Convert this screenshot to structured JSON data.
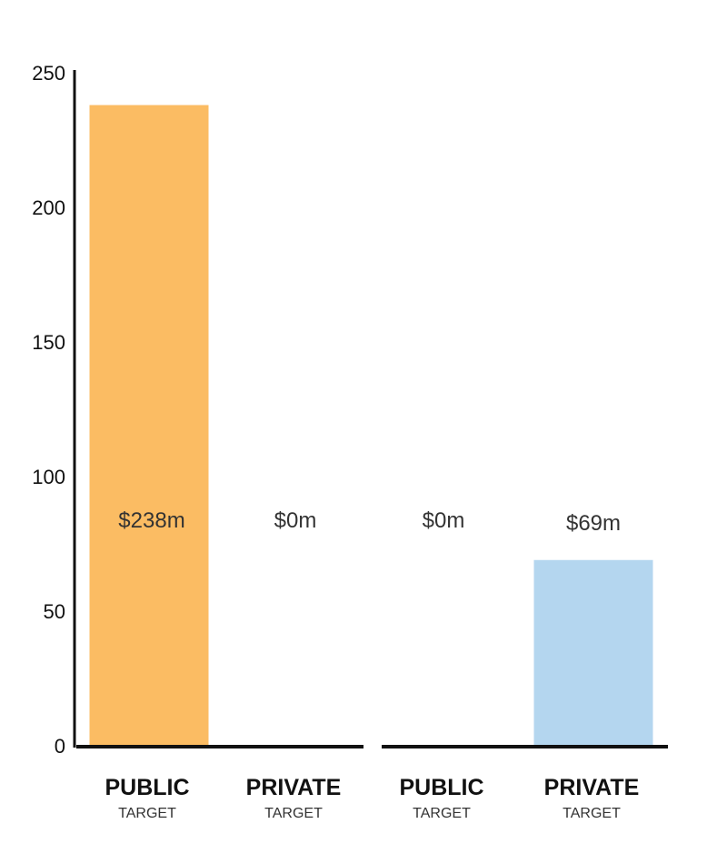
{
  "chart_data": {
    "type": "bar",
    "title": "",
    "xlabel": "",
    "ylabel": "",
    "ylim": [
      0,
      250
    ],
    "yticks": [
      0,
      50,
      100,
      150,
      200,
      250
    ],
    "grid": false,
    "categories": [
      {
        "label": "PUBLIC",
        "sublabel": "TARGET"
      },
      {
        "label": "PRIVATE",
        "sublabel": "TARGET"
      },
      {
        "label": "PUBLIC",
        "sublabel": "TARGET"
      },
      {
        "label": "PRIVATE",
        "sublabel": "TARGET"
      }
    ],
    "values": [
      238,
      0,
      0,
      69
    ],
    "data_labels": [
      "$238m",
      "$0m",
      "$0m",
      "$69m"
    ],
    "colors": [
      "#FBBC63",
      "#FBBC63",
      "#B4D6EF",
      "#B4D6EF"
    ]
  }
}
